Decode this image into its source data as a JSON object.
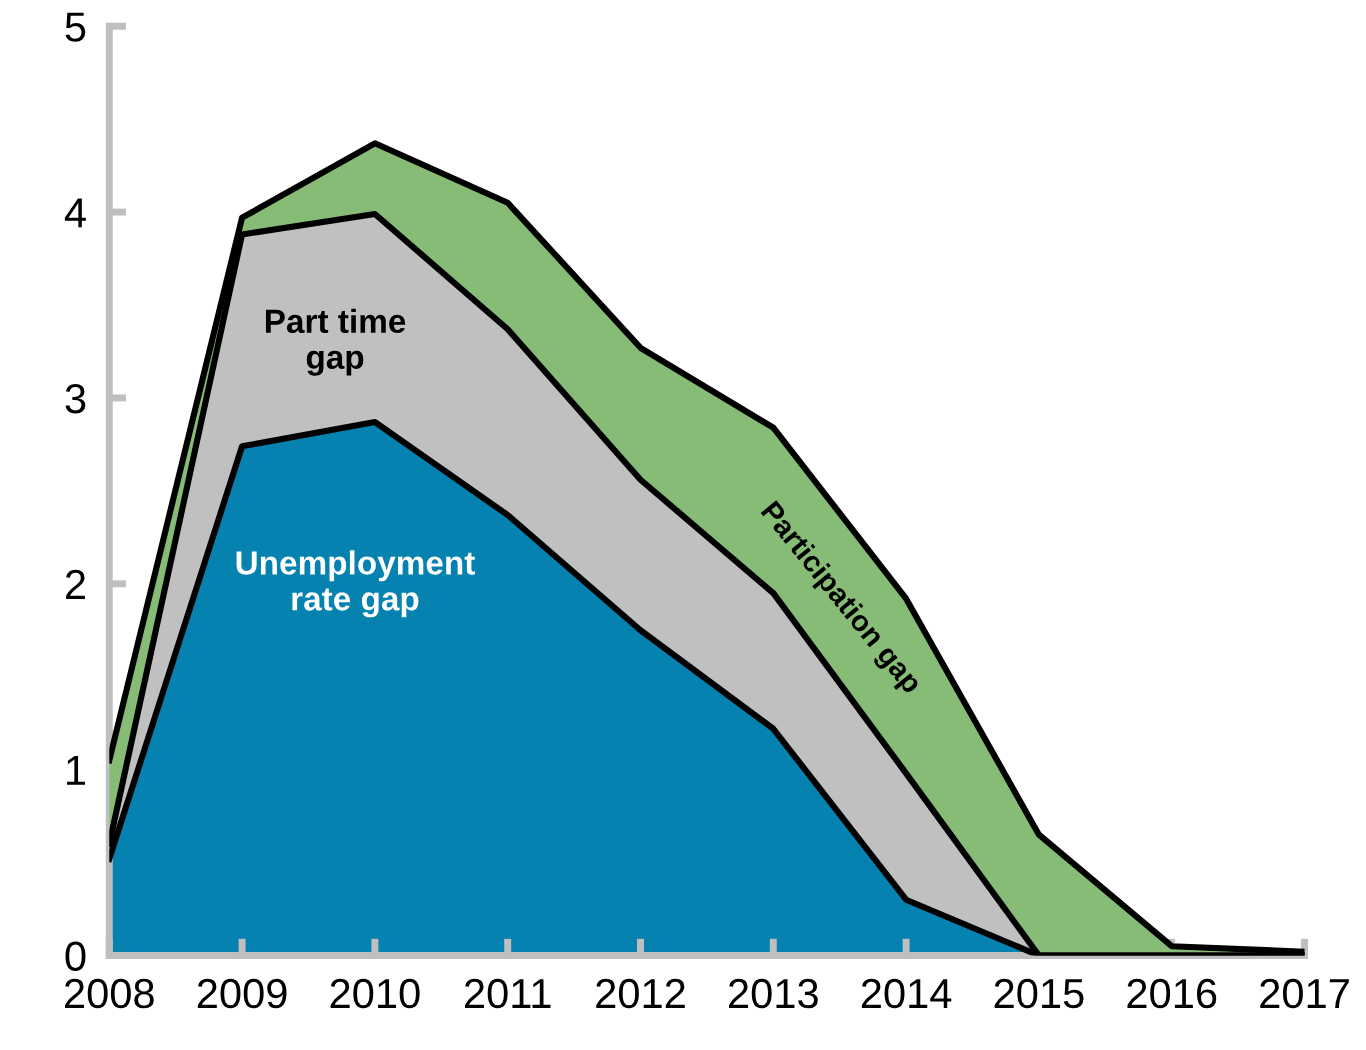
{
  "chart_data": {
    "type": "area",
    "stacked": true,
    "x": [
      2008,
      2009,
      2010,
      2011,
      2012,
      2013,
      2014,
      2015,
      2016,
      2017
    ],
    "xlim": [
      2008,
      2017
    ],
    "xticks": [
      2008,
      2009,
      2010,
      2011,
      2012,
      2013,
      2014,
      2015,
      2016,
      2017
    ],
    "ylim": [
      0,
      5
    ],
    "yticks": [
      0,
      1,
      2,
      3,
      4,
      5
    ],
    "grid": false,
    "series": [
      {
        "name": "Unemployment rate gap",
        "color": "#0582b0",
        "values": [
          0.52,
          2.74,
          2.87,
          2.37,
          1.75,
          1.22,
          0.3,
          0,
          0,
          0
        ]
      },
      {
        "name": "Part time gap",
        "color": "#c0c0c0",
        "values": [
          0.08,
          1.14,
          1.12,
          1.0,
          0.81,
          0.73,
          0.68,
          0,
          0,
          0
        ]
      },
      {
        "name": "Participation gap",
        "color": "#86bc76",
        "values": [
          0.45,
          0.09,
          0.38,
          0.68,
          0.71,
          0.89,
          0.94,
          0.65,
          0.05,
          0.02
        ]
      }
    ]
  }
}
